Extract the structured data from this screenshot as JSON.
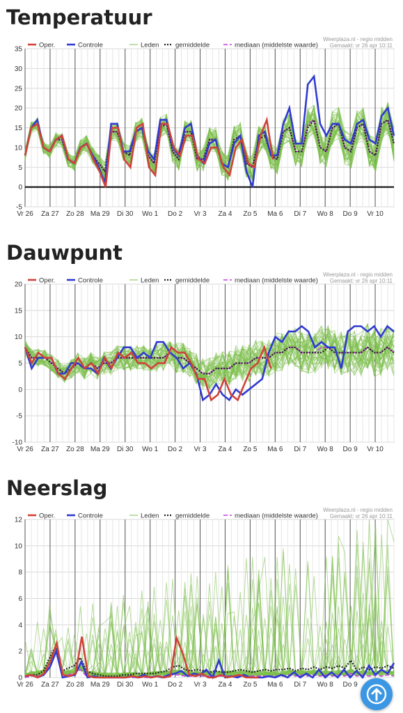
{
  "charts": [
    {
      "key": "temp",
      "title": "Temperatuur",
      "ymin": -5,
      "ymax": 35,
      "ystep": 5,
      "chart_data": {
        "type": "line",
        "source": "Weerplaza.nl - regio midden",
        "made": "Gemaakt: vr 26 apr 10:11",
        "x_labels": [
          "Vr 26",
          "Za 27",
          "Zo 28",
          "Ma 29",
          "Di 30",
          "Wo 1",
          "Do 2",
          "Vr 3",
          "Za 4",
          "Zo 5",
          "Ma 6",
          "Di 7",
          "Wo 8",
          "Do 9",
          "Vr 10"
        ],
        "legend": [
          "Oper.",
          "Controle",
          "Leden",
          "gemiddelde",
          "mediaan (middelste waarde)"
        ],
        "oper": [
          8,
          15,
          16,
          10,
          9,
          12,
          13,
          7,
          6,
          10,
          11,
          7,
          4,
          0,
          15,
          15,
          7,
          5,
          15,
          16,
          5,
          3,
          16,
          16,
          10,
          8,
          13,
          13,
          7,
          6,
          10,
          10,
          5,
          3,
          10,
          12,
          6,
          5,
          13,
          17,
          7
        ],
        "controle": [
          8,
          15,
          17,
          10,
          9,
          12,
          13,
          7,
          6,
          10,
          11,
          8,
          5,
          1,
          16,
          16,
          9,
          9,
          14,
          15,
          9,
          7,
          17,
          17,
          10,
          8,
          15,
          16,
          8,
          6,
          11,
          12,
          6,
          5,
          11,
          13,
          4,
          0,
          13,
          14,
          8,
          8,
          16,
          20,
          11,
          11,
          26,
          28,
          16,
          13,
          16,
          16,
          12,
          11,
          16,
          17,
          12,
          11,
          18,
          20,
          13
        ],
        "mean": [
          8,
          15,
          16,
          10,
          9,
          12,
          12,
          7,
          6,
          10,
          11,
          8,
          6,
          4,
          14,
          14,
          9,
          8,
          14,
          15,
          8,
          6,
          15,
          16,
          9,
          7,
          14,
          14,
          7,
          7,
          12,
          12,
          6,
          5,
          12,
          13,
          6,
          5,
          12,
          13,
          8,
          7,
          14,
          15,
          9,
          9,
          15,
          17,
          10,
          9,
          15,
          16,
          10,
          9,
          15,
          16,
          9,
          8,
          16,
          17,
          11
        ],
        "median": [
          8,
          15,
          16,
          10,
          9,
          12,
          12,
          7,
          6,
          10,
          11,
          8,
          6,
          4,
          14,
          14,
          9,
          8,
          14,
          15,
          8,
          6,
          15,
          16,
          9,
          7,
          14,
          14,
          7,
          7,
          12,
          12,
          6,
          5,
          12,
          13,
          6,
          5,
          12,
          13,
          8,
          7,
          14,
          15,
          9,
          9,
          16,
          17,
          10,
          9,
          15,
          16,
          10,
          9,
          15,
          16,
          9,
          8,
          16,
          17,
          11
        ]
      }
    },
    {
      "key": "dew",
      "title": "Dauwpunt",
      "ymin": -10,
      "ymax": 20,
      "ystep": 5,
      "chart_data": {
        "type": "line",
        "source": "Weerplaza.nl - regio midden",
        "made": "Gemaakt: vr 26 apr 10:11",
        "x_labels": [
          "Vr 26",
          "Za 27",
          "Zo 28",
          "Ma 29",
          "Di 30",
          "Wo 1",
          "Do 2",
          "Vr 3",
          "Za 4",
          "Zo 5",
          "Ma 6",
          "Di 7",
          "Wo 8",
          "Do 9",
          "Vr 10"
        ],
        "legend": [
          "Oper.",
          "Controle",
          "Leden",
          "gemiddelde",
          "mediaan (middelste waarde)"
        ],
        "oper": [
          8,
          5,
          7,
          6,
          6,
          3,
          2,
          4,
          6,
          4,
          5,
          3,
          6,
          4,
          7,
          6,
          7,
          5,
          5,
          4,
          5,
          5,
          8,
          7,
          7,
          5,
          2,
          2,
          -2,
          -1,
          2,
          -1,
          -2,
          1,
          4,
          5,
          8,
          4
        ],
        "controle": [
          8,
          4,
          6,
          6,
          6,
          3,
          3,
          5,
          5,
          4,
          4,
          3,
          6,
          4,
          6,
          8,
          8,
          6,
          7,
          6,
          9,
          9,
          7,
          6,
          4,
          5,
          3,
          -2,
          -1,
          1,
          -1,
          -2,
          0,
          -1,
          0,
          1,
          2,
          7,
          10,
          9,
          11,
          11,
          12,
          11,
          8,
          9,
          8,
          8,
          4,
          11,
          12,
          12,
          11,
          12,
          10,
          12,
          11
        ],
        "mean": [
          8,
          6,
          6,
          6,
          5,
          4,
          3,
          4,
          5,
          4,
          5,
          4,
          5,
          5,
          6,
          6,
          6,
          6,
          6,
          6,
          6,
          6,
          7,
          6,
          6,
          5,
          4,
          3,
          3,
          4,
          4,
          4,
          5,
          5,
          5,
          6,
          6,
          6,
          7,
          7,
          8,
          8,
          7,
          7,
          7,
          7,
          8,
          7,
          7,
          7,
          7,
          7,
          8,
          7,
          7,
          8,
          7
        ],
        "median": [
          8,
          6,
          6,
          6,
          5,
          4,
          3,
          4,
          5,
          4,
          5,
          4,
          5,
          5,
          6,
          6,
          6,
          6,
          6,
          6,
          6,
          6,
          7,
          6,
          6,
          5,
          4,
          3,
          3,
          4,
          4,
          4,
          5,
          5,
          5,
          6,
          6,
          6,
          7,
          7,
          8,
          8,
          7,
          7,
          7,
          8,
          8,
          7,
          7,
          7,
          7,
          7,
          8,
          7,
          7,
          8,
          7
        ]
      }
    },
    {
      "key": "rain",
      "title": "Neerslag",
      "ymin": 0,
      "ymax": 12,
      "ystep": 2,
      "chart_data": {
        "type": "line",
        "source": "Weerplaza.nl - regio midden",
        "made": "Gemaakt: vr 26 apr 10:11",
        "x_labels": [
          "Vr 26",
          "Za 27",
          "Zo 28",
          "Ma 29",
          "Di 30",
          "Wo 1",
          "Do 2",
          "Vr 3",
          "Za 4",
          "Zo 5",
          "Ma 6",
          "Di 7",
          "Wo 8",
          "Do 9",
          "Vr 10"
        ],
        "legend": [
          "Oper.",
          "Controle",
          "Leden",
          "gemiddelde",
          "mediaan (middelste waarde)"
        ],
        "oper": [
          0.1,
          0.2,
          0,
          0.3,
          1.2,
          2.6,
          0.2,
          0.1,
          0.3,
          3.1,
          0.1,
          0,
          0,
          0,
          0,
          0,
          0,
          0.1,
          0,
          0.1,
          0,
          0.1,
          0,
          0.1,
          3,
          1.8,
          0.2,
          0.1,
          0.3,
          0,
          0,
          0.2,
          0,
          0.1,
          0.2,
          0,
          0,
          0
        ],
        "controle": [
          0.1,
          0.2,
          0,
          0.2,
          0.8,
          2,
          0,
          0.1,
          0.2,
          1.2,
          0,
          0.1,
          0,
          0,
          0,
          0,
          0,
          0.1,
          0,
          0.2,
          0,
          0.1,
          0,
          0.2,
          0.3,
          0.5,
          0.1,
          0.3,
          0.2,
          0.6,
          0,
          1.3,
          0,
          0.1,
          0,
          0.2,
          0,
          0,
          0,
          0.1,
          0,
          0.2,
          0,
          0.4,
          0,
          0.3,
          0,
          0.6,
          0,
          0.4,
          0,
          0.6,
          0,
          0.5,
          0,
          0.9,
          0.2,
          0.6,
          0.3,
          1.1
        ],
        "mean": [
          0.1,
          0.2,
          0.2,
          0.5,
          1.5,
          2.4,
          0.5,
          0.7,
          0.9,
          1.5,
          0.5,
          0.3,
          0.2,
          0.1,
          0.1,
          0.1,
          0.2,
          0.2,
          0.3,
          0.3,
          0.3,
          0.3,
          0.4,
          0.5,
          0.8,
          0.9,
          0.6,
          0.5,
          0.6,
          0.5,
          0.4,
          0.5,
          0.4,
          0.4,
          0.5,
          0.6,
          0.5,
          0.4,
          0.5,
          0.6,
          0.5,
          0.6,
          0.6,
          0.7,
          0.5,
          0.7,
          0.6,
          0.8,
          0.6,
          0.8,
          0.7,
          0.9,
          0.7,
          1.3,
          0.5,
          0.8,
          0.6,
          0.8,
          0.7,
          0.9,
          0.7
        ],
        "median": [
          0,
          0.1,
          0.1,
          0.2,
          1,
          2,
          0.2,
          0.2,
          0.3,
          0.6,
          0.1,
          0.1,
          0,
          0,
          0,
          0,
          0,
          0,
          0,
          0,
          0,
          0.1,
          0.1,
          0.1,
          0.2,
          0.2,
          0.1,
          0.1,
          0.1,
          0.1,
          0.1,
          0.1,
          0.1,
          0.1,
          0.1,
          0.1,
          0.1,
          0.1,
          0.1,
          0.1,
          0.1,
          0.1,
          0.1,
          0.2,
          0.1,
          0.2,
          0.1,
          0.2,
          0.1,
          0.2,
          0.1,
          0.2,
          0.1,
          0.3,
          0.1,
          0.2,
          0.1,
          0.2,
          0.1,
          0.2,
          0.1
        ]
      }
    }
  ],
  "colors": {
    "oper": "#d0423a",
    "controle": "#2f3ad0",
    "leden": "#7cbf4a",
    "mean": "#222222",
    "median": "#c43ae0",
    "fab": "#3b97e3"
  },
  "fab_icon": "arrow-up-icon"
}
